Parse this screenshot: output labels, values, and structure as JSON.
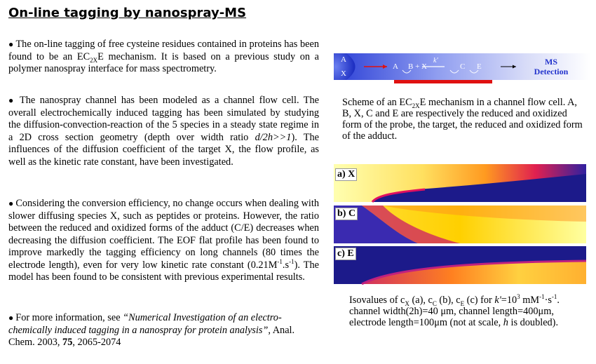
{
  "header": {
    "title": "On-line tagging by nanospray-MS"
  },
  "left": {
    "paragraphs": [
      [
        "The on-line tagging of free cysteine residues contained in proteins has been found to be an EC",
        "2X",
        "E mechanism. It is based on a previous study on a polymer nanospray interface for mass spectrometry."
      ],
      [
        "The nanospray channel has been modeled as a channel flow cell. The overall electrochemically induced tagging has been simulated by studying the diffusion-convection-reaction of the 5 species in a steady state regime in a 2D cross section geometry (depth over width ratio ",
        "d/2h>>1",
        "). The influences of the diffusion coefficient of the target X, the flow profile, as well as the kinetic rate constant, have been investigated."
      ],
      [
        "Considering the conversion efficiency, no change occurs when dealing with slower diffusing species X, such as peptides or proteins. However, the ratio between the reduced and oxidized forms of the adduct (C/E) decreases when decreasing the diffusion coefficient. The EOF flat profile has been found to improve markedly the tagging efficiency on long channels (80 times the electrode length), even for very low kinetic rate constant (0.21M",
        "-1",
        ".s",
        "-1",
        "). The model has been found to be consistent with previous experimental results."
      ],
      [
        "For more information, see ",
        "“Numerical Investigation of an electro-chemically induced tagging in a nanospray for protein analysis”",
        ", Anal. Chem. 2003, ",
        "75",
        ", 2065-2074"
      ]
    ]
  },
  "scheme": {
    "inlet_top": "A",
    "inlet_bottom": "X",
    "species_a": "A",
    "species_bx": "B + X",
    "rate": "k'",
    "species_c": "C",
    "species_e": "E",
    "detector_line1": "MS",
    "detector_line2": "Detection"
  },
  "scheme_caption": [
    "Scheme of an EC",
    "2X",
    "E mechanism in a channel flow cell. A, B, X, C and E are respectively the reduced and oxidized form of the probe, the target, the reduced and oxidized form of the adduct."
  ],
  "panels": [
    {
      "tag": "a)",
      "species": "X"
    },
    {
      "tag": "b)",
      "species": "C"
    },
    {
      "tag": "c)",
      "species": "E"
    }
  ],
  "panels_caption": [
    "Isovalues of c",
    "X",
    " (a), c",
    "C",
    " (b), c",
    "E",
    " (c) for ",
    "k'",
    "=10",
    "3",
    " mM",
    "-1",
    "·s",
    "-1",
    ". channel width(2h)=40 μm, channel length=400μm, electrode length=100μm (not at scale, ",
    "h",
    " is doubled)."
  ]
}
